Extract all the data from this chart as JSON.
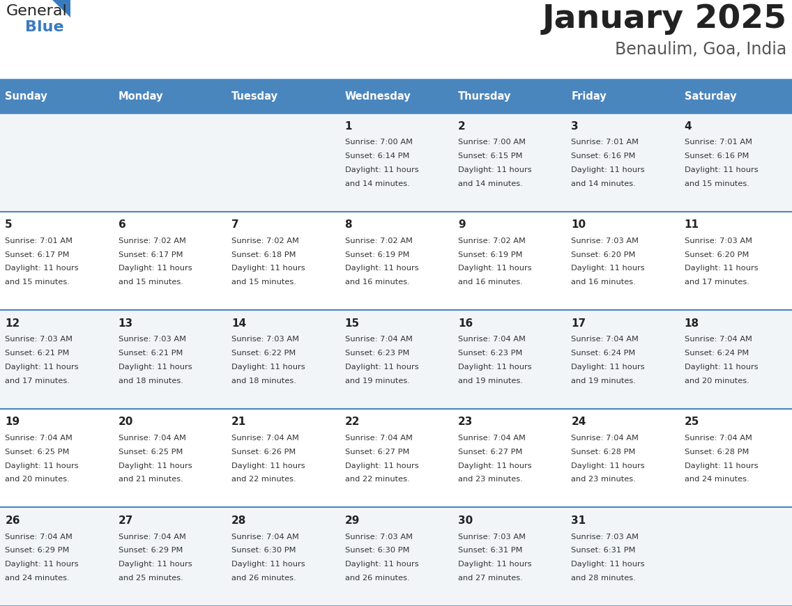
{
  "title": "January 2025",
  "subtitle": "Benaulim, Goa, India",
  "header_color": "#4a86be",
  "header_text_color": "#ffffff",
  "row_bg_colors": [
    "#f2f5f8",
    "#ffffff"
  ],
  "border_color": "#4a86be",
  "text_color": "#333333",
  "day_number_color": "#222222",
  "logo_general_color": "#222222",
  "logo_blue_color": "#3a7bbf",
  "logo_triangle_color": "#3a7bbf",
  "title_color": "#222222",
  "subtitle_color": "#555555",
  "days_of_week": [
    "Sunday",
    "Monday",
    "Tuesday",
    "Wednesday",
    "Thursday",
    "Friday",
    "Saturday"
  ],
  "calendar_data": [
    [
      {
        "day": "",
        "sunrise": "",
        "sunset": "",
        "daylight_min": ""
      },
      {
        "day": "",
        "sunrise": "",
        "sunset": "",
        "daylight_min": ""
      },
      {
        "day": "",
        "sunrise": "",
        "sunset": "",
        "daylight_min": ""
      },
      {
        "day": "1",
        "sunrise": "7:00 AM",
        "sunset": "6:14 PM",
        "daylight_min": "14"
      },
      {
        "day": "2",
        "sunrise": "7:00 AM",
        "sunset": "6:15 PM",
        "daylight_min": "14"
      },
      {
        "day": "3",
        "sunrise": "7:01 AM",
        "sunset": "6:16 PM",
        "daylight_min": "14"
      },
      {
        "day": "4",
        "sunrise": "7:01 AM",
        "sunset": "6:16 PM",
        "daylight_min": "15"
      }
    ],
    [
      {
        "day": "5",
        "sunrise": "7:01 AM",
        "sunset": "6:17 PM",
        "daylight_min": "15"
      },
      {
        "day": "6",
        "sunrise": "7:02 AM",
        "sunset": "6:17 PM",
        "daylight_min": "15"
      },
      {
        "day": "7",
        "sunrise": "7:02 AM",
        "sunset": "6:18 PM",
        "daylight_min": "15"
      },
      {
        "day": "8",
        "sunrise": "7:02 AM",
        "sunset": "6:19 PM",
        "daylight_min": "16"
      },
      {
        "day": "9",
        "sunrise": "7:02 AM",
        "sunset": "6:19 PM",
        "daylight_min": "16"
      },
      {
        "day": "10",
        "sunrise": "7:03 AM",
        "sunset": "6:20 PM",
        "daylight_min": "16"
      },
      {
        "day": "11",
        "sunrise": "7:03 AM",
        "sunset": "6:20 PM",
        "daylight_min": "17"
      }
    ],
    [
      {
        "day": "12",
        "sunrise": "7:03 AM",
        "sunset": "6:21 PM",
        "daylight_min": "17"
      },
      {
        "day": "13",
        "sunrise": "7:03 AM",
        "sunset": "6:21 PM",
        "daylight_min": "18"
      },
      {
        "day": "14",
        "sunrise": "7:03 AM",
        "sunset": "6:22 PM",
        "daylight_min": "18"
      },
      {
        "day": "15",
        "sunrise": "7:04 AM",
        "sunset": "6:23 PM",
        "daylight_min": "19"
      },
      {
        "day": "16",
        "sunrise": "7:04 AM",
        "sunset": "6:23 PM",
        "daylight_min": "19"
      },
      {
        "day": "17",
        "sunrise": "7:04 AM",
        "sunset": "6:24 PM",
        "daylight_min": "19"
      },
      {
        "day": "18",
        "sunrise": "7:04 AM",
        "sunset": "6:24 PM",
        "daylight_min": "20"
      }
    ],
    [
      {
        "day": "19",
        "sunrise": "7:04 AM",
        "sunset": "6:25 PM",
        "daylight_min": "20"
      },
      {
        "day": "20",
        "sunrise": "7:04 AM",
        "sunset": "6:25 PM",
        "daylight_min": "21"
      },
      {
        "day": "21",
        "sunrise": "7:04 AM",
        "sunset": "6:26 PM",
        "daylight_min": "22"
      },
      {
        "day": "22",
        "sunrise": "7:04 AM",
        "sunset": "6:27 PM",
        "daylight_min": "22"
      },
      {
        "day": "23",
        "sunrise": "7:04 AM",
        "sunset": "6:27 PM",
        "daylight_min": "23"
      },
      {
        "day": "24",
        "sunrise": "7:04 AM",
        "sunset": "6:28 PM",
        "daylight_min": "23"
      },
      {
        "day": "25",
        "sunrise": "7:04 AM",
        "sunset": "6:28 PM",
        "daylight_min": "24"
      }
    ],
    [
      {
        "day": "26",
        "sunrise": "7:04 AM",
        "sunset": "6:29 PM",
        "daylight_min": "24"
      },
      {
        "day": "27",
        "sunrise": "7:04 AM",
        "sunset": "6:29 PM",
        "daylight_min": "25"
      },
      {
        "day": "28",
        "sunrise": "7:04 AM",
        "sunset": "6:30 PM",
        "daylight_min": "26"
      },
      {
        "day": "29",
        "sunrise": "7:03 AM",
        "sunset": "6:30 PM",
        "daylight_min": "26"
      },
      {
        "day": "30",
        "sunrise": "7:03 AM",
        "sunset": "6:31 PM",
        "daylight_min": "27"
      },
      {
        "day": "31",
        "sunrise": "7:03 AM",
        "sunset": "6:31 PM",
        "daylight_min": "28"
      },
      {
        "day": "",
        "sunrise": "",
        "sunset": "",
        "daylight_min": ""
      }
    ]
  ]
}
